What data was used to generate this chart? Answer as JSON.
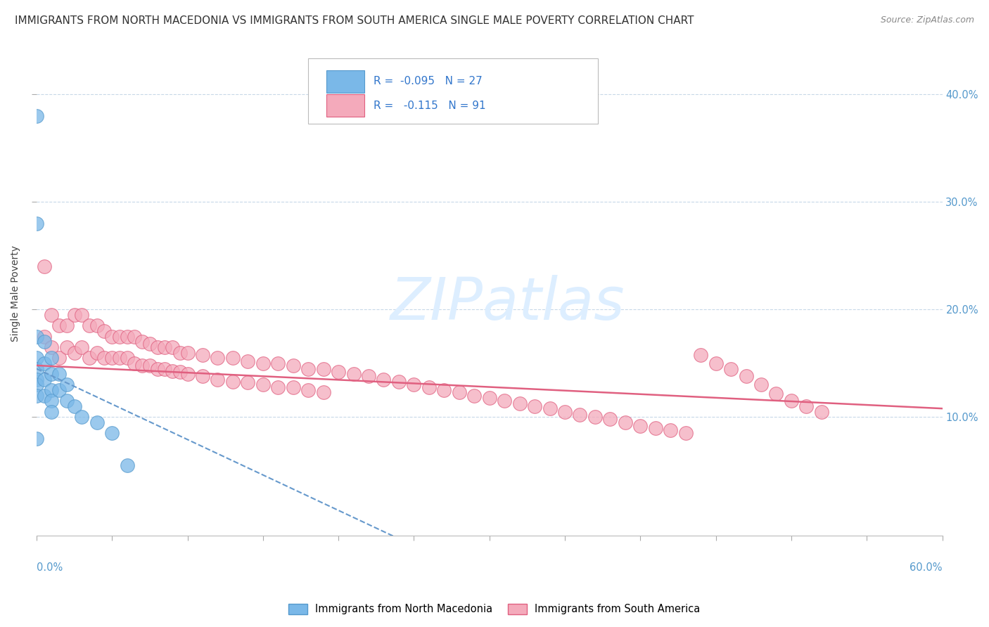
{
  "title": "IMMIGRANTS FROM NORTH MACEDONIA VS IMMIGRANTS FROM SOUTH AMERICA SINGLE MALE POVERTY CORRELATION CHART",
  "source": "Source: ZipAtlas.com",
  "ylabel": "Single Male Poverty",
  "xlim": [
    0.0,
    0.6
  ],
  "ylim": [
    -0.01,
    0.44
  ],
  "yticks": [
    0.1,
    0.2,
    0.3,
    0.4
  ],
  "ytick_labels": [
    "10.0%",
    "20.0%",
    "30.0%",
    "40.0%"
  ],
  "north_macedonia": {
    "dot_color": "#7ab8e8",
    "dot_edge": "#5599cc",
    "line_color": "#6699cc",
    "R": -0.095,
    "N": 27,
    "x": [
      0.0,
      0.0,
      0.0,
      0.0,
      0.0,
      0.0,
      0.0,
      0.0,
      0.0,
      0.005,
      0.005,
      0.005,
      0.005,
      0.01,
      0.01,
      0.01,
      0.01,
      0.01,
      0.015,
      0.015,
      0.02,
      0.02,
      0.025,
      0.03,
      0.04,
      0.05,
      0.06
    ],
    "y": [
      0.38,
      0.28,
      0.175,
      0.155,
      0.145,
      0.135,
      0.13,
      0.12,
      0.08,
      0.17,
      0.15,
      0.135,
      0.12,
      0.155,
      0.14,
      0.125,
      0.115,
      0.105,
      0.14,
      0.125,
      0.13,
      0.115,
      0.11,
      0.1,
      0.095,
      0.085,
      0.055
    ]
  },
  "south_america": {
    "dot_color": "#f4aabb",
    "dot_edge": "#e06080",
    "line_color": "#e06080",
    "R": -0.115,
    "N": 91,
    "x": [
      0.005,
      0.005,
      0.01,
      0.01,
      0.015,
      0.015,
      0.02,
      0.02,
      0.025,
      0.025,
      0.03,
      0.03,
      0.035,
      0.035,
      0.04,
      0.04,
      0.045,
      0.045,
      0.05,
      0.05,
      0.055,
      0.055,
      0.06,
      0.06,
      0.065,
      0.065,
      0.07,
      0.07,
      0.075,
      0.075,
      0.08,
      0.08,
      0.085,
      0.085,
      0.09,
      0.09,
      0.095,
      0.095,
      0.1,
      0.1,
      0.11,
      0.11,
      0.12,
      0.12,
      0.13,
      0.13,
      0.14,
      0.14,
      0.15,
      0.15,
      0.16,
      0.16,
      0.17,
      0.17,
      0.18,
      0.18,
      0.19,
      0.19,
      0.2,
      0.21,
      0.22,
      0.23,
      0.24,
      0.25,
      0.26,
      0.27,
      0.28,
      0.29,
      0.3,
      0.31,
      0.32,
      0.33,
      0.34,
      0.35,
      0.36,
      0.37,
      0.38,
      0.39,
      0.4,
      0.41,
      0.42,
      0.43,
      0.44,
      0.45,
      0.46,
      0.47,
      0.48,
      0.49,
      0.5,
      0.51,
      0.52
    ],
    "y": [
      0.24,
      0.175,
      0.195,
      0.165,
      0.185,
      0.155,
      0.185,
      0.165,
      0.195,
      0.16,
      0.195,
      0.165,
      0.185,
      0.155,
      0.185,
      0.16,
      0.18,
      0.155,
      0.175,
      0.155,
      0.175,
      0.155,
      0.175,
      0.155,
      0.175,
      0.15,
      0.17,
      0.148,
      0.168,
      0.148,
      0.165,
      0.145,
      0.165,
      0.145,
      0.165,
      0.143,
      0.16,
      0.142,
      0.16,
      0.14,
      0.158,
      0.138,
      0.155,
      0.135,
      0.155,
      0.133,
      0.152,
      0.132,
      0.15,
      0.13,
      0.15,
      0.128,
      0.148,
      0.128,
      0.145,
      0.125,
      0.145,
      0.123,
      0.142,
      0.14,
      0.138,
      0.135,
      0.133,
      0.13,
      0.128,
      0.125,
      0.123,
      0.12,
      0.118,
      0.115,
      0.113,
      0.11,
      0.108,
      0.105,
      0.102,
      0.1,
      0.098,
      0.095,
      0.092,
      0.09,
      0.088,
      0.085,
      0.158,
      0.15,
      0.145,
      0.138,
      0.13,
      0.122,
      0.115,
      0.11,
      0.105
    ]
  },
  "legend_text_color": "#3377cc",
  "legend_r_color": "#3377cc",
  "legend_n_color": "#3377cc",
  "watermark": "ZIPatlas",
  "watermark_color": "#ddeeff",
  "background_color": "#ffffff",
  "grid_color": "#c8d8e8",
  "right_axis_color": "#5599cc",
  "title_fontsize": 11,
  "axis_label_fontsize": 10
}
